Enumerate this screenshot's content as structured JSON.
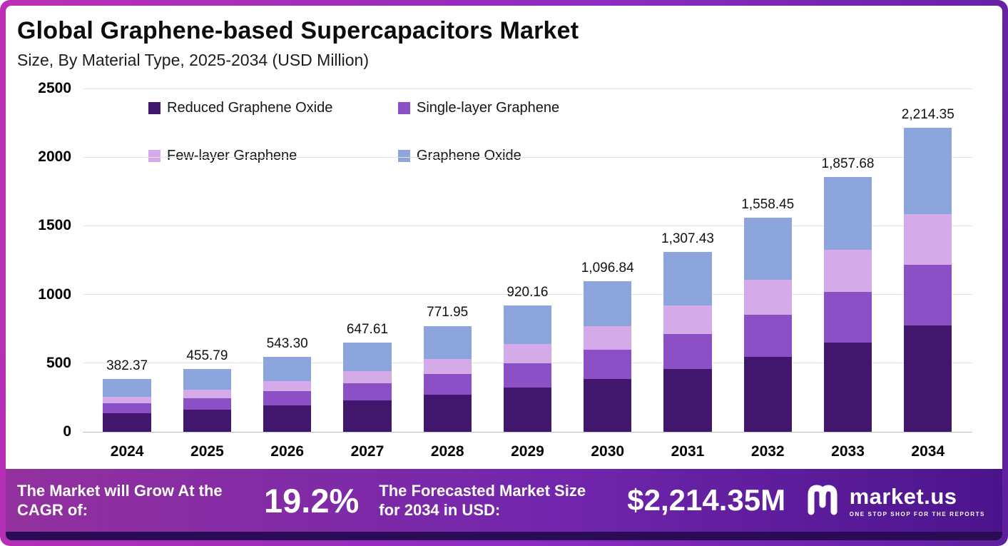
{
  "header": {
    "title": "Global Graphene-based Supercapacitors Market",
    "subtitle": "Size, By Material Type, 2025-2034 (USD Million)"
  },
  "chart_data": {
    "type": "bar",
    "stacked": true,
    "title": "Global Graphene-based Supercapacitors Market Size, By Material Type, 2025-2034 (USD Million)",
    "categories": [
      "2024",
      "2025",
      "2026",
      "2027",
      "2028",
      "2029",
      "2030",
      "2031",
      "2032",
      "2033",
      "2034"
    ],
    "totals": [
      382.37,
      455.79,
      543.3,
      647.61,
      771.95,
      920.16,
      1096.84,
      1307.43,
      1558.45,
      1857.68,
      2214.35
    ],
    "total_labels": [
      "382.37",
      "455.79",
      "543.30",
      "647.61",
      "771.95",
      "920.16",
      "1,096.84",
      "1,307.43",
      "1,558.45",
      "1,857.68",
      "2,214.35"
    ],
    "series": [
      {
        "name": "Reduced Graphene Oxide",
        "color": "#41176e",
        "values": [
          133.8,
          159.5,
          190.2,
          226.7,
          270.2,
          322.1,
          383.9,
          457.6,
          545.5,
          650.2,
          775.0
        ]
      },
      {
        "name": "Single-layer Graphene",
        "color": "#8b4fc6",
        "values": [
          72.7,
          86.6,
          104.3,
          124.3,
          149.8,
          178.5,
          215.0,
          256.3,
          308.6,
          367.8,
          440.7
        ]
      },
      {
        "name": "Few-layer Graphene",
        "color": "#d5aae8",
        "values": [
          49.7,
          61.1,
          75.0,
          92.0,
          112.7,
          138.0,
          168.9,
          206.6,
          252.5,
          308.4,
          367.6
        ]
      },
      {
        "name": "Graphene Oxide",
        "color": "#8ca5dd",
        "values": [
          126.2,
          148.6,
          173.9,
          204.6,
          239.3,
          281.6,
          329.1,
          387.0,
          451.9,
          531.3,
          631.1
        ]
      }
    ],
    "ylim": [
      0,
      2500
    ],
    "yticks": [
      0,
      500,
      1000,
      1500,
      2000,
      2500
    ],
    "grid": true,
    "legend_position": "top-left-inside"
  },
  "footer": {
    "cagr_label": "The Market will Grow At the CAGR of:",
    "cagr_value": "19.2%",
    "forecast_label": "The Forecasted Market Size for 2034 in USD:",
    "forecast_value": "$2,214.35M",
    "brand_name": "market.us",
    "brand_tagline": "ONE STOP SHOP FOR THE REPORTS"
  }
}
